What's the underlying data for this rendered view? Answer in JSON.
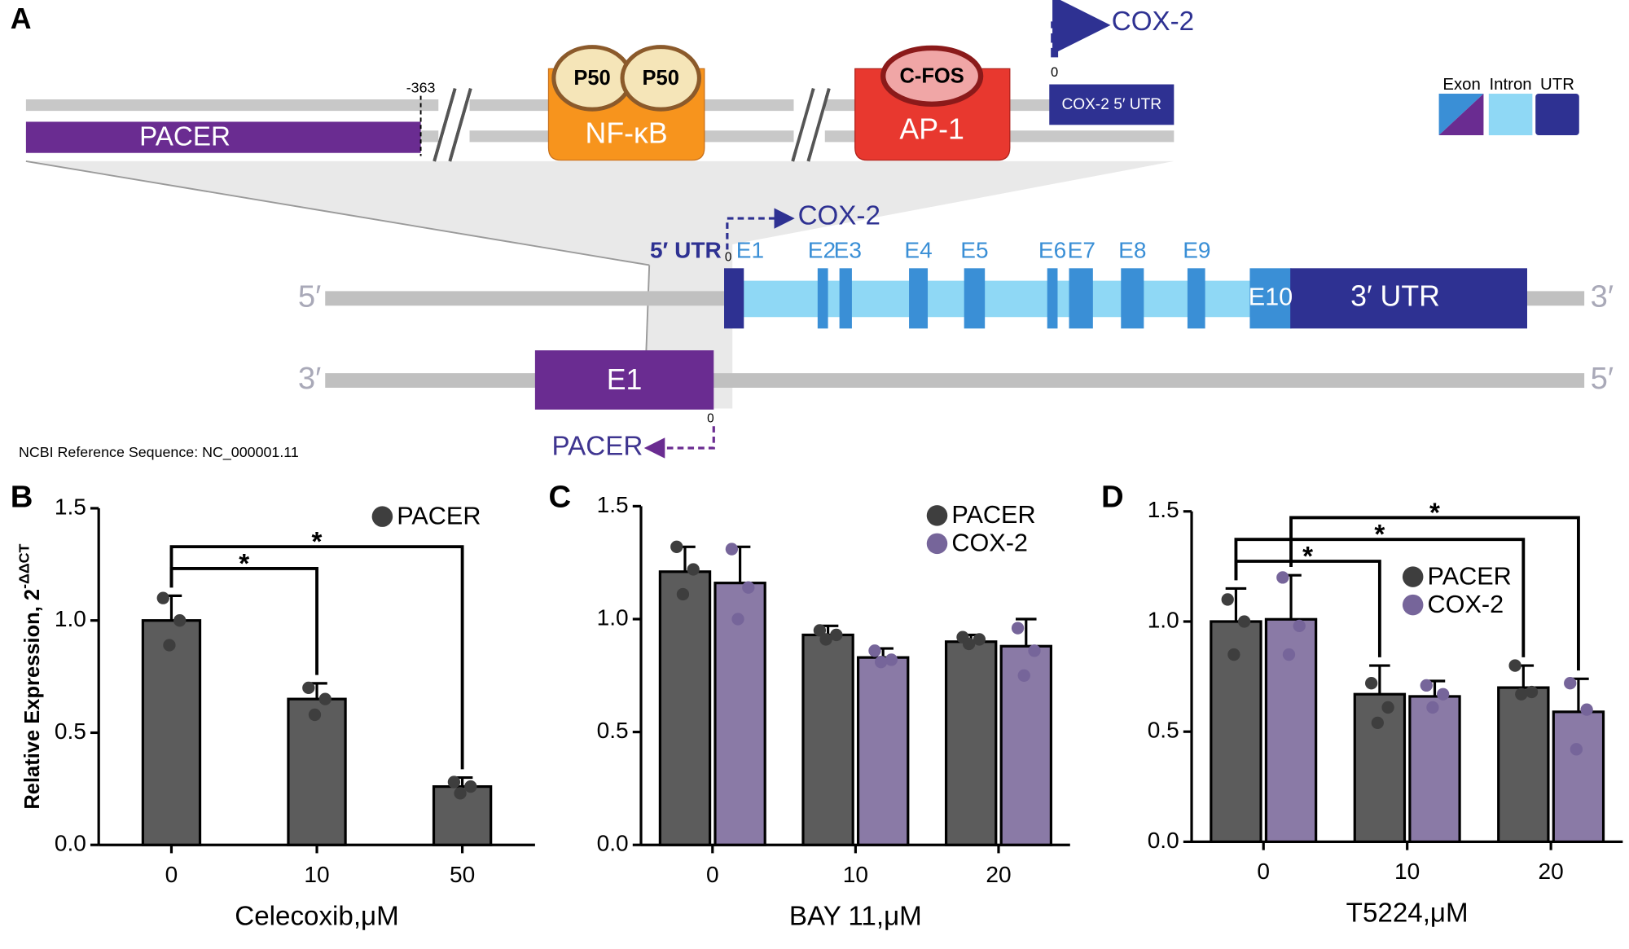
{
  "diagram": {
    "label": "A",
    "promoter": {
      "position": "-363",
      "pacer": "PACER",
      "nfkb": {
        "subunits": [
          "P50",
          "P50"
        ],
        "name": "NF-κB"
      },
      "ap1": {
        "subunit": "C-FOS",
        "name": "AP-1"
      },
      "tss_label": "0",
      "transcript": "COX-2",
      "utr": "COX-2  5′ UTR"
    },
    "legend": [
      "Exon",
      "Intron",
      "UTR"
    ],
    "gene": {
      "utr5": "5′ UTR",
      "tss": "0",
      "transcript": "COX-2",
      "exons": [
        "E1",
        "E2",
        "E3",
        "E4",
        "E5",
        "E6",
        "E7",
        "E8",
        "E9"
      ],
      "e10": "E10",
      "utr3": "3′ UTR",
      "top_ends": [
        "5′",
        "3′"
      ],
      "bottom_ends": [
        "3′",
        "5′"
      ],
      "pacer_exon": "E1",
      "pacer_tss": "0",
      "pacer": "PACER"
    },
    "reference": "NCBI Reference Sequence: NC_000001.11"
  },
  "chart_data": [
    {
      "type": "bar",
      "label": "B",
      "ylabel": "Relative Expression, 2",
      "ylabel_superscript": "-ΔΔCT",
      "xlabel": "Celecoxib,μM",
      "categories": [
        "0",
        "10",
        "50"
      ],
      "ylim": [
        0,
        1.5
      ],
      "yticks": [
        {
          "value": 0,
          "label": "0.0"
        },
        0.5,
        {
          "value": 1,
          "label": "1.0"
        },
        1.5
      ],
      "series": [
        {
          "name": "PACER",
          "color": "#5c5c5c",
          "point_color": "#3e3e3e",
          "values": [
            1.0,
            0.65,
            0.26
          ],
          "errors": [
            0.11,
            0.07,
            0.04
          ],
          "points": [
            [
              1.1,
              1.0,
              0.89
            ],
            [
              0.7,
              0.65,
              0.58
            ],
            [
              0.28,
              0.26,
              0.23
            ]
          ]
        }
      ],
      "significance": [
        {
          "from": [
            "0",
            "PACER"
          ],
          "to": [
            "10",
            "PACER"
          ],
          "label": "*"
        },
        {
          "from": [
            "0",
            "PACER"
          ],
          "to": [
            "50",
            "PACER"
          ],
          "label": "*"
        }
      ]
    },
    {
      "type": "bar",
      "label": "C",
      "xlabel": "BAY 11,μM",
      "categories": [
        "0",
        "10",
        "20"
      ],
      "ylim": [
        0,
        1.5
      ],
      "yticks": [
        {
          "value": 0,
          "label": "0.0"
        },
        0.5,
        {
          "value": 1,
          "label": "1.0"
        },
        1.5
      ],
      "series": [
        {
          "name": "PACER",
          "color": "#5c5c5c",
          "point_color": "#3e3e3e",
          "values": [
            1.21,
            0.93,
            0.9
          ],
          "errors": [
            0.11,
            0.04,
            0.03
          ],
          "points": [
            [
              1.32,
              1.22,
              1.11
            ],
            [
              0.95,
              0.93,
              0.91
            ],
            [
              0.92,
              0.91,
              0.89
            ]
          ]
        },
        {
          "name": "COX-2",
          "color": "#8a7aa6",
          "point_color": "#76659a",
          "values": [
            1.16,
            0.83,
            0.88
          ],
          "errors": [
            0.16,
            0.04,
            0.12
          ],
          "points": [
            [
              1.31,
              1.14,
              1.0
            ],
            [
              0.86,
              0.82,
              0.81
            ],
            [
              0.96,
              0.86,
              0.75
            ]
          ]
        }
      ]
    },
    {
      "type": "bar",
      "label": "D",
      "xlabel": "T5224,μM",
      "categories": [
        "0",
        "10",
        "20"
      ],
      "ylim": [
        0,
        1.5
      ],
      "yticks": [
        {
          "value": 0,
          "label": "0.0"
        },
        0.5,
        {
          "value": 1,
          "label": "1.0"
        },
        1.5
      ],
      "series": [
        {
          "name": "PACER",
          "color": "#5c5c5c",
          "point_color": "#3e3e3e",
          "values": [
            1.0,
            0.67,
            0.7
          ],
          "errors": [
            0.15,
            0.13,
            0.1
          ],
          "points": [
            [
              1.1,
              1.0,
              0.85
            ],
            [
              0.72,
              0.61,
              0.54
            ],
            [
              0.8,
              0.68,
              0.67
            ]
          ]
        },
        {
          "name": "COX-2",
          "color": "#8a7aa6",
          "point_color": "#76659a",
          "values": [
            1.01,
            0.66,
            0.59
          ],
          "errors": [
            0.2,
            0.07,
            0.15
          ],
          "points": [
            [
              1.2,
              0.98,
              0.85
            ],
            [
              0.71,
              0.67,
              0.61
            ],
            [
              0.72,
              0.6,
              0.42
            ]
          ]
        }
      ],
      "significance": [
        {
          "from": [
            "0",
            "PACER"
          ],
          "to": [
            "10",
            "PACER"
          ],
          "label": "*"
        },
        {
          "from": [
            "0",
            "PACER"
          ],
          "to": [
            "20",
            "PACER"
          ],
          "label": "*"
        },
        {
          "from": [
            "0",
            "COX-2"
          ],
          "to": [
            "20",
            "COX-2"
          ],
          "label": "*"
        }
      ]
    }
  ]
}
